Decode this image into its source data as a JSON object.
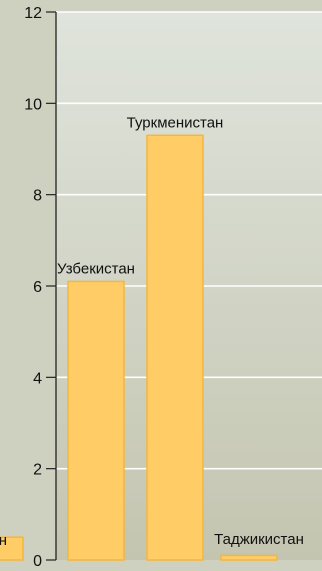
{
  "chart_data": {
    "type": "bar",
    "categories": [
      "",
      "Узбекистан",
      "Туркменистан",
      "Таджикистан"
    ],
    "values": [
      0.5,
      6.1,
      9.3,
      0.1
    ],
    "data_labels": [
      "н",
      "Узбекистан",
      "Туркменистан",
      "Таджикистан"
    ],
    "ylim": [
      0,
      12
    ],
    "yticks": [
      0,
      2,
      4,
      6,
      8,
      10,
      12
    ],
    "grid": true,
    "title": "",
    "xlabel": "",
    "ylabel": ""
  },
  "colors": {
    "bar_fill": "#ffcc66",
    "bar_stroke": "#f4b63f",
    "plot_gradient_top": "#dfe4dc",
    "plot_gradient_bottom": "#c4c5b0",
    "grid": "#ffffff",
    "axis": "#222222"
  }
}
